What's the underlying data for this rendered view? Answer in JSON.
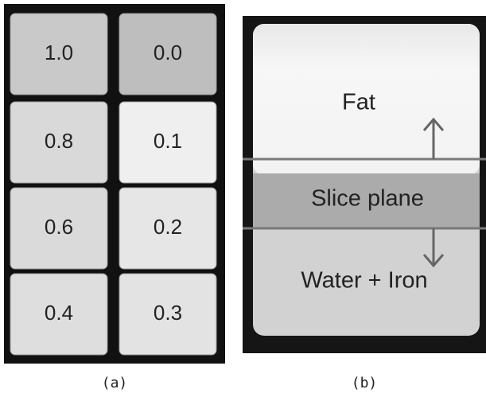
{
  "panel_a": {
    "cells": [
      "1.0",
      "0.0",
      "0.8",
      "0.1",
      "0.6",
      "0.2",
      "0.4",
      "0.3"
    ],
    "caption": "(a)"
  },
  "panel_b": {
    "labels": {
      "top": "Fat",
      "middle": "Slice plane",
      "bottom": "Water + Iron"
    },
    "caption": "(b)"
  }
}
